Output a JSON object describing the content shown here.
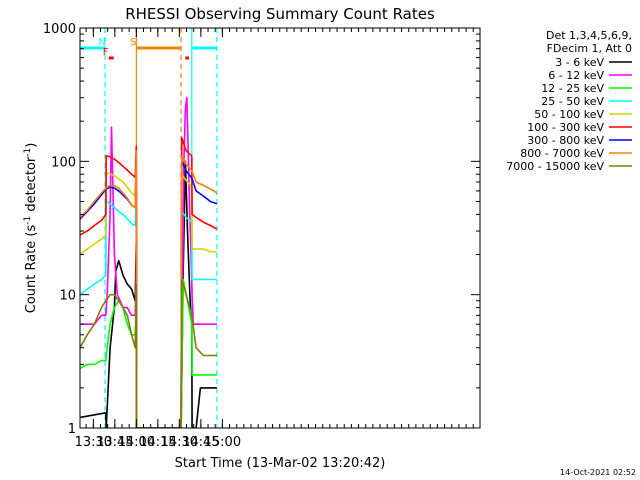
{
  "chart_data": {
    "type": "line",
    "title": "RHESSI Observing Summary Count Rates",
    "xlabel": "Start Time (13-Mar-02 13:20:42)",
    "ylabel": "Count Rate (s⁻¹ detector⁻¹)",
    "ylabel_parts": {
      "main": "Count Rate (s",
      "sup1": "-1",
      "mid": " detector",
      "sup2": "-1",
      "end": ")"
    },
    "yscale": "log",
    "ylim": [
      1,
      1000
    ],
    "xlim_minutes": [
      0,
      279
    ],
    "x_unit": "minutes since 13:20:42",
    "yticks": [
      {
        "value": 1,
        "label": "1"
      },
      {
        "value": 10,
        "label": "10"
      },
      {
        "value": 100,
        "label": "100"
      },
      {
        "value": 1000,
        "label": "1000"
      }
    ],
    "xticks": [
      {
        "minute": 9.3,
        "label": "13:30"
      },
      {
        "minute": 24.3,
        "label": "13:45"
      },
      {
        "minute": 39.3,
        "label": "14:00"
      },
      {
        "minute": 54.3,
        "label": "14:15"
      },
      {
        "minute": 69.3,
        "label": "14:30"
      },
      {
        "minute": 84.3,
        "label": "14:45"
      },
      {
        "minute": 99.3,
        "label": "15:00"
      }
    ],
    "legend_header": [
      "Det 1,3,4,5,6,9,",
      "FDecim 1, Att 0"
    ],
    "footer_date": "14-Oct-2021 02:52",
    "series": [
      {
        "name": "3 - 6 keV",
        "color": "#000000",
        "x": [
          0,
          18,
          18.3,
          21,
          24,
          25,
          27,
          30,
          33,
          36,
          38.5,
          39.3,
          39.5,
          70.5,
          72,
          73.5,
          75,
          76,
          77,
          78,
          78.2,
          81,
          84,
          88,
          92,
          95.5
        ],
        "y": [
          1.2,
          1.3,
          1.0,
          4.0,
          8.0,
          15.0,
          18.0,
          14.0,
          12.0,
          11.0,
          9.0,
          25.0,
          1.0,
          1.0,
          15.0,
          100.0,
          30.0,
          15.0,
          8.0,
          6.0,
          1.0,
          1.0,
          2.0,
          2.0,
          2.0,
          2.0
        ]
      },
      {
        "name": "6 - 12 keV",
        "color": "#ff00ff",
        "x": [
          0,
          5,
          10,
          15,
          18,
          19,
          21,
          22,
          23,
          24,
          26,
          28,
          30,
          33,
          36,
          38.5,
          39.3,
          39.5,
          70.5,
          71.5,
          72.5,
          73.5,
          74.5,
          75.5,
          76.5,
          77.5,
          78.2,
          79,
          84,
          89,
          95.5
        ],
        "y": [
          6,
          6,
          6,
          7,
          7,
          10,
          40,
          180,
          60,
          20,
          10,
          9,
          8,
          8,
          7,
          7,
          15,
          1,
          1,
          12,
          100,
          250,
          300,
          120,
          40,
          20,
          10,
          6,
          6,
          6,
          6
        ]
      },
      {
        "name": "12 - 25 keV",
        "color": "#00ff00",
        "x": [
          0,
          5,
          10,
          15,
          18,
          19,
          21,
          24,
          27,
          30,
          33,
          36,
          38.5,
          39.3,
          39.5,
          70.5,
          72,
          75,
          78,
          78.2,
          81,
          86,
          95.5
        ],
        "y": [
          2.8,
          3.0,
          3.0,
          3.2,
          3.2,
          4.0,
          6.0,
          8.0,
          9.0,
          8.0,
          6.0,
          5.0,
          5.0,
          7.0,
          1.0,
          1.0,
          13.0,
          9.0,
          6.0,
          2.5,
          2.5,
          2.5,
          2.5
        ]
      },
      {
        "name": "25 - 50 keV",
        "color": "#00ffff",
        "x": [
          0,
          5,
          10,
          15,
          18,
          18.3,
          21,
          24,
          27,
          30,
          33,
          36,
          38.5,
          39.3,
          39.5,
          70.5,
          71,
          74,
          78,
          78.2,
          81,
          86,
          91,
          95.5
        ],
        "y": [
          10.0,
          11.0,
          12.0,
          13.0,
          14.0,
          50.0,
          48.0,
          45.0,
          42.0,
          40.0,
          37.0,
          34.0,
          33.0,
          55.0,
          1.0,
          1.0,
          42.0,
          38.0,
          35.0,
          13.0,
          13.0,
          13.0,
          13.0,
          13.0
        ]
      },
      {
        "name": "50 - 100 keV",
        "color": "#d4d400",
        "x": [
          0,
          5,
          10,
          15,
          18,
          18.3,
          21,
          24,
          27,
          30,
          33,
          36,
          38.5,
          39.3,
          39.5,
          70.5,
          71,
          74,
          78,
          78.2,
          81,
          86,
          91,
          95.5
        ],
        "y": [
          20.0,
          22.0,
          24.0,
          26.0,
          28.0,
          82.0,
          80.0,
          78.0,
          74.0,
          70.0,
          64.0,
          58.0,
          55.0,
          90.0,
          1.0,
          1.0,
          80.0,
          72.0,
          65.0,
          22.0,
          22.0,
          22.0,
          21.0,
          21.0
        ]
      },
      {
        "name": "100 - 300 keV",
        "color": "#ff0000",
        "x": [
          0,
          5,
          10,
          15,
          18,
          18.3,
          21,
          24,
          27,
          30,
          33,
          36,
          38.5,
          39.3,
          39.5,
          70.5,
          71,
          74,
          78,
          78.2,
          81,
          86,
          91,
          95.5
        ],
        "y": [
          28.0,
          30.0,
          33.0,
          36.0,
          40.0,
          110.0,
          108.0,
          104.0,
          98.0,
          92.0,
          86.0,
          80.0,
          76.0,
          130.0,
          1.0,
          1.0,
          150.0,
          120.0,
          110.0,
          40.0,
          38.0,
          35.0,
          33.0,
          31.0
        ]
      },
      {
        "name": "300 - 800 keV",
        "color": "#0000ff",
        "x": [
          0,
          5,
          10,
          15,
          18,
          21,
          24,
          27,
          30,
          33,
          36,
          38.5,
          39.3,
          39.5,
          70.5,
          71,
          74,
          78,
          81,
          86,
          91,
          95.5
        ],
        "y": [
          37.0,
          42.0,
          48.0,
          56.0,
          62.0,
          64.0,
          63.0,
          60.0,
          56.0,
          52.0,
          47.0,
          45.0,
          120.0,
          1.0,
          1.0,
          100.0,
          85.0,
          75.0,
          60.0,
          55.0,
          50.0,
          48.0
        ]
      },
      {
        "name": "800 - 7000 keV",
        "color": "#ff8000",
        "x": [
          0,
          5,
          10,
          15,
          18,
          21,
          24,
          27,
          30,
          33,
          36,
          38.5,
          39.3,
          39.5,
          70.5,
          71,
          74,
          78,
          81,
          86,
          91,
          95.5
        ],
        "y": [
          38.0,
          43.0,
          50.0,
          58.0,
          63.0,
          66.0,
          66.0,
          63.0,
          58.0,
          53.0,
          47.0,
          45.0,
          120.0,
          1.0,
          1.0,
          110.0,
          95.0,
          85.0,
          70.0,
          66.0,
          62.0,
          58.0
        ]
      },
      {
        "name": "7000 - 15000 keV",
        "color": "#808000",
        "x": [
          0,
          5,
          10,
          15,
          18,
          21,
          24,
          27,
          30,
          33,
          36,
          38.5,
          39.3,
          39.5,
          70.5,
          71,
          74,
          78,
          81,
          86,
          91,
          95.5
        ],
        "y": [
          4.0,
          5.0,
          6.0,
          8.0,
          9.0,
          10.0,
          10.0,
          9.0,
          8.0,
          7.0,
          5.0,
          4.0,
          12.0,
          1.0,
          1.0,
          13.0,
          10.0,
          7.0,
          4.0,
          3.5,
          3.5,
          3.5
        ]
      }
    ],
    "annotations": {
      "vertical_markers": [
        {
          "minute": 17.5,
          "color": "#00ffff",
          "style": "dashed",
          "top_label": "N"
        },
        {
          "minute": 39.3,
          "color": "#ff8000",
          "style": "solid"
        },
        {
          "minute": 70.5,
          "color": "#ff8000",
          "style": "dashed"
        },
        {
          "minute": 78.0,
          "color": "#00ffff",
          "style": "solid"
        },
        {
          "minute": 95.5,
          "color": "#00ffff",
          "style": "dashed"
        }
      ],
      "top_bars": [
        {
          "label": "",
          "start": 0,
          "end": 17.5,
          "color": "#00ffff",
          "level": "upper"
        },
        {
          "label": "N",
          "start": 17.5,
          "end": 17.5,
          "color": "#00ffff",
          "level": "upper"
        },
        {
          "label": "S",
          "start": 39.3,
          "end": 70.5,
          "color": "#ff8000",
          "level": "upper"
        },
        {
          "label": "",
          "start": 78.0,
          "end": 95.5,
          "color": "#00ffff",
          "level": "upper"
        },
        {
          "label": "F",
          "start": 20.0,
          "end": 23.5,
          "color": "#ff0000",
          "level": "lower"
        },
        {
          "label": "",
          "start": 73.5,
          "end": 76.0,
          "color": "#ff0000",
          "level": "lower"
        }
      ]
    }
  }
}
